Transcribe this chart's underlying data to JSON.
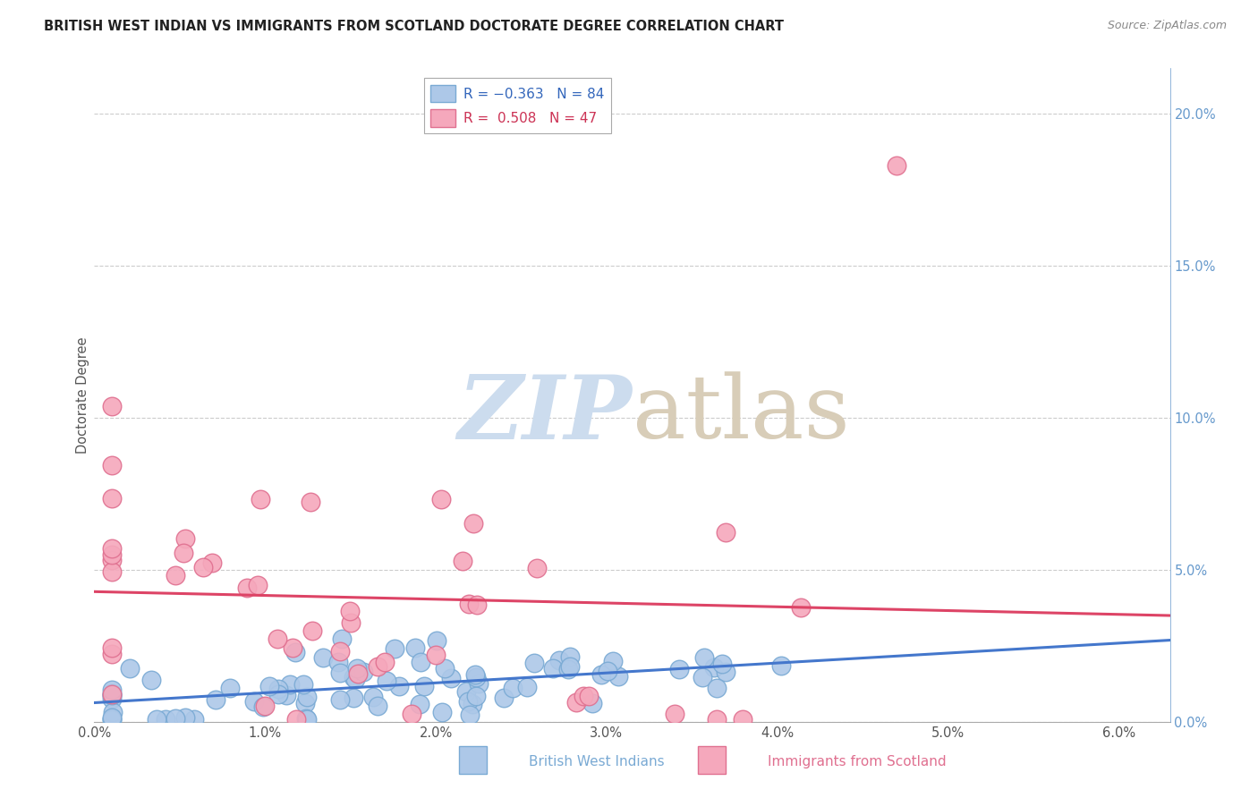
{
  "title": "BRITISH WEST INDIAN VS IMMIGRANTS FROM SCOTLAND DOCTORATE DEGREE CORRELATION CHART",
  "source": "Source: ZipAtlas.com",
  "ylabel": "Doctorate Degree",
  "series1_color": "#adc8e8",
  "series1_edge": "#7aaad4",
  "series2_color": "#f5a8bc",
  "series2_edge": "#e07090",
  "series1_label": "British West Indians",
  "series2_label": "Immigrants from Scotland",
  "series1_R": -0.363,
  "series1_N": 84,
  "series2_R": 0.508,
  "series2_N": 47,
  "line1_color": "#4477cc",
  "line2_color": "#dd4466",
  "background_color": "#ffffff",
  "grid_color": "#cccccc",
  "xlim": [
    0.0,
    0.063
  ],
  "ylim": [
    0.0,
    0.215
  ],
  "xtick_positions": [
    0.0,
    0.01,
    0.02,
    0.03,
    0.04,
    0.05,
    0.06
  ],
  "xtick_labels": [
    "0.0%",
    "1.0%",
    "2.0%",
    "3.0%",
    "4.0%",
    "5.0%",
    "6.0%"
  ],
  "ytick_positions": [
    0.0,
    0.05,
    0.1,
    0.15,
    0.2
  ],
  "ytick_labels": [
    "0.0%",
    "5.0%",
    "10.0%",
    "15.0%",
    "20.0%"
  ],
  "watermark_zip_color": "#ccdcee",
  "watermark_atlas_color": "#d8cdb8",
  "title_color": "#222222",
  "source_color": "#888888",
  "right_tick_color": "#6699cc"
}
